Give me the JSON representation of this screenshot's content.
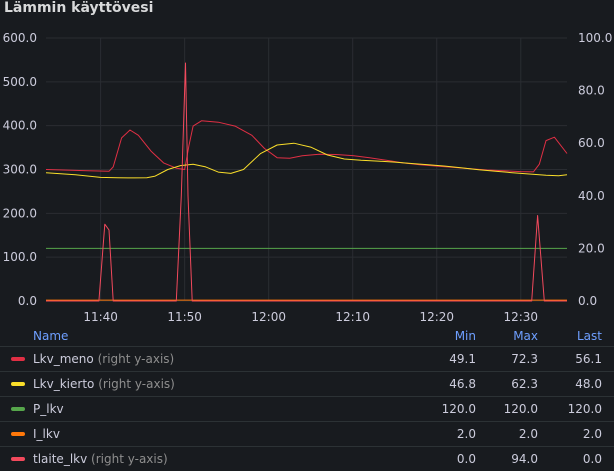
{
  "panel": {
    "title": "Lämmin käyttövesi"
  },
  "colors": {
    "Lkv_meno": "#e02f44",
    "Lkv_kierto": "#fade2a",
    "P_lkv": "#56a64b",
    "I_lkv": "#ff780a",
    "tlaite_lkv": "#f2495c",
    "grid": "#2a2d32",
    "tick_text": "#ccccdc"
  },
  "chart_data": {
    "type": "line",
    "x_ticks": [
      "11:40",
      "11:50",
      "12:00",
      "12:10",
      "12:20",
      "12:30"
    ],
    "x_minutes": [
      0,
      10,
      20,
      30,
      40,
      50
    ],
    "xlim": [
      -6.5,
      55.5
    ],
    "y_left": {
      "ticks": [
        "0.0",
        "100.0",
        "200.0",
        "300.0",
        "400.0",
        "500.0",
        "600.0"
      ],
      "ylim": [
        0,
        600
      ]
    },
    "y_right": {
      "ticks": [
        "0.0",
        "20.0",
        "40.0",
        "60.0",
        "80.0",
        "100.0"
      ],
      "ylim": [
        0,
        100
      ]
    },
    "series": [
      {
        "name": "Lkv_meno",
        "axis": "right",
        "points": [
          [
            -6.5,
            50
          ],
          [
            -1.5,
            49.5
          ],
          [
            1,
            49.3
          ],
          [
            1.5,
            51
          ],
          [
            2.5,
            62
          ],
          [
            3.5,
            65
          ],
          [
            4.5,
            63
          ],
          [
            6,
            57
          ],
          [
            7.5,
            52.5
          ],
          [
            9,
            50.5
          ],
          [
            10,
            50
          ],
          [
            10.5,
            59
          ],
          [
            11,
            66.5
          ],
          [
            12,
            68.5
          ],
          [
            14,
            68
          ],
          [
            16,
            66.5
          ],
          [
            18,
            63
          ],
          [
            19.5,
            58
          ],
          [
            21,
            54.5
          ],
          [
            22.5,
            54.3
          ],
          [
            24,
            55.2
          ],
          [
            26,
            55.8
          ],
          [
            28,
            55.7
          ],
          [
            30,
            55.3
          ],
          [
            32,
            54.5
          ],
          [
            34,
            53.5
          ],
          [
            36,
            52.5
          ],
          [
            38,
            51.8
          ],
          [
            40,
            51.3
          ],
          [
            42,
            50.8
          ],
          [
            44,
            50.3
          ],
          [
            46,
            49.8
          ],
          [
            48,
            49.5
          ],
          [
            50,
            49.2
          ],
          [
            51.5,
            49.1
          ],
          [
            52.2,
            52
          ],
          [
            53,
            61
          ],
          [
            54,
            62.3
          ],
          [
            55.5,
            56.1
          ]
        ]
      },
      {
        "name": "Lkv_kierto",
        "axis": "right",
        "points": [
          [
            -6.5,
            48.8
          ],
          [
            -3,
            48
          ],
          [
            0,
            47
          ],
          [
            2,
            46.9
          ],
          [
            4,
            46.8
          ],
          [
            5.5,
            46.9
          ],
          [
            6.5,
            47.5
          ],
          [
            8,
            50
          ],
          [
            9.5,
            51.5
          ],
          [
            11,
            52
          ],
          [
            12.5,
            51
          ],
          [
            14,
            49
          ],
          [
            15.5,
            48.5
          ],
          [
            17,
            50
          ],
          [
            19,
            56
          ],
          [
            21,
            59.3
          ],
          [
            23,
            60
          ],
          [
            25,
            58.5
          ],
          [
            27,
            55.5
          ],
          [
            29,
            54
          ],
          [
            31,
            53.5
          ],
          [
            33,
            53.2
          ],
          [
            35,
            52.8
          ],
          [
            37,
            52.3
          ],
          [
            39,
            51.8
          ],
          [
            41,
            51.3
          ],
          [
            43,
            50.6
          ],
          [
            45,
            49.9
          ],
          [
            47,
            49.3
          ],
          [
            49,
            48.8
          ],
          [
            51,
            48.3
          ],
          [
            53,
            47.8
          ],
          [
            54.5,
            47.6
          ],
          [
            55.5,
            48
          ]
        ]
      },
      {
        "name": "P_lkv",
        "axis": "left",
        "points": [
          [
            -6.5,
            120
          ],
          [
            55.5,
            120
          ]
        ]
      },
      {
        "name": "I_lkv",
        "axis": "left",
        "points": [
          [
            -6.5,
            2
          ],
          [
            55.5,
            2
          ]
        ]
      },
      {
        "name": "tlaite_lkv",
        "axis": "right",
        "points": [
          [
            -6.5,
            0
          ],
          [
            -0.2,
            0
          ],
          [
            0.5,
            29.2
          ],
          [
            1,
            27
          ],
          [
            1.5,
            0
          ],
          [
            9,
            0
          ],
          [
            9.6,
            40
          ],
          [
            10.1,
            90.5
          ],
          [
            10.4,
            40
          ],
          [
            10.9,
            0
          ],
          [
            51.3,
            0
          ],
          [
            52,
            32.5
          ],
          [
            52.8,
            0
          ],
          [
            55.5,
            0
          ]
        ]
      }
    ]
  },
  "legend": {
    "headers": {
      "name": "Name",
      "min": "Min",
      "max": "Max",
      "last": "Last"
    },
    "rows": [
      {
        "name": "Lkv_meno",
        "note": "(right y-axis)",
        "min": "49.1",
        "max": "72.3",
        "last": "56.1"
      },
      {
        "name": "Lkv_kierto",
        "note": "(right y-axis)",
        "min": "46.8",
        "max": "62.3",
        "last": "48.0"
      },
      {
        "name": "P_lkv",
        "note": "",
        "min": "120.0",
        "max": "120.0",
        "last": "120.0"
      },
      {
        "name": "I_lkv",
        "note": "",
        "min": "2.0",
        "max": "2.0",
        "last": "2.0"
      },
      {
        "name": "tlaite_lkv",
        "note": "(right y-axis)",
        "min": "0.0",
        "max": "94.0",
        "last": "0.0"
      }
    ]
  }
}
